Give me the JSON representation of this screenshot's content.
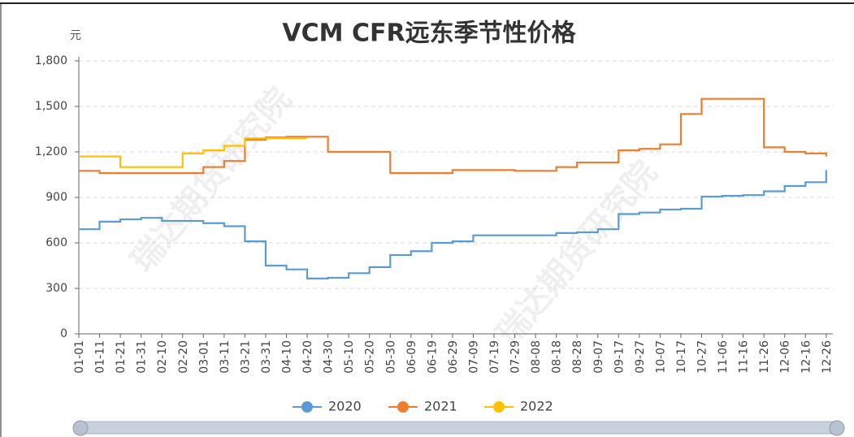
{
  "chart_data": {
    "type": "line",
    "step": true,
    "title": "VCM CFR远东季节性价格",
    "y_unit": "元",
    "watermark": "瑞达期货研究院",
    "grid": true,
    "legend_position": "bottom",
    "categories": [
      "01-01",
      "01-11",
      "01-21",
      "01-31",
      "02-10",
      "02-20",
      "03-01",
      "03-11",
      "03-21",
      "03-31",
      "04-10",
      "04-20",
      "04-30",
      "05-10",
      "05-20",
      "05-30",
      "06-09",
      "06-19",
      "06-29",
      "07-09",
      "07-19",
      "07-29",
      "08-08",
      "08-18",
      "08-28",
      "09-07",
      "09-17",
      "09-27",
      "10-07",
      "10-17",
      "10-27",
      "11-06",
      "11-16",
      "11-26",
      "12-06",
      "12-16",
      "12-26"
    ],
    "series": [
      {
        "name": "2020",
        "color": "#5b9bd5",
        "values": [
          690,
          740,
          755,
          765,
          745,
          745,
          730,
          710,
          610,
          450,
          425,
          365,
          370,
          400,
          440,
          520,
          545,
          600,
          610,
          650,
          650,
          650,
          650,
          665,
          670,
          690,
          790,
          800,
          820,
          825,
          905,
          910,
          915,
          940,
          975,
          1000,
          1080
        ]
      },
      {
        "name": "2021",
        "color": "#ed7d31",
        "values": [
          1075,
          1060,
          1060,
          1060,
          1060,
          1060,
          1100,
          1140,
          1280,
          1295,
          1300,
          1300,
          1200,
          1200,
          1200,
          1060,
          1060,
          1060,
          1080,
          1080,
          1080,
          1075,
          1075,
          1100,
          1130,
          1130,
          1210,
          1220,
          1250,
          1450,
          1550,
          1550,
          1550,
          1230,
          1200,
          1190,
          1170
        ]
      },
      {
        "name": "2022",
        "color": "#ffc000",
        "values": [
          1170,
          1170,
          1100,
          1100,
          1100,
          1190,
          1210,
          1240,
          1290,
          1290,
          1290,
          1290,
          null,
          null,
          null,
          null,
          null,
          null,
          null,
          null,
          null,
          null,
          null,
          null,
          null,
          null,
          null,
          null,
          null,
          null,
          null,
          null,
          null,
          null,
          null,
          null,
          null
        ]
      }
    ],
    "ylim": [
      0,
      1800
    ],
    "yticks": [
      0,
      300,
      600,
      900,
      {
        "value": 1200,
        "label": "1,200"
      },
      {
        "value": 1500,
        "label": "1,500"
      },
      {
        "value": 1800,
        "label": "1,800"
      }
    ]
  }
}
